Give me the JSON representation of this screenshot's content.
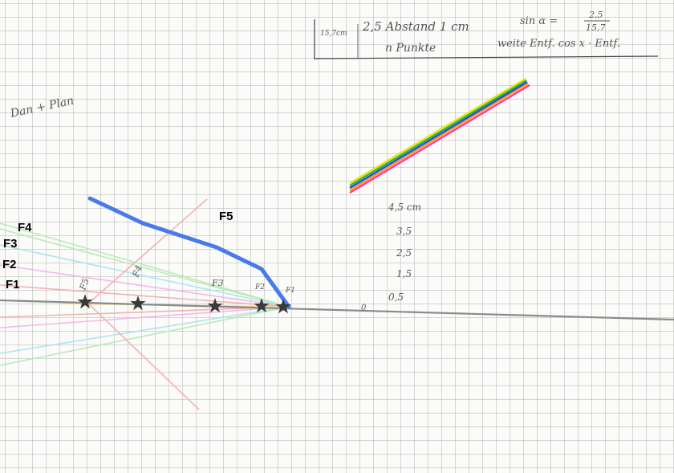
{
  "handwriting": {
    "top_left_note": "15,7cm",
    "spacing_note": "2,5 Abstand 1 cm",
    "count_note": "n Punkte",
    "sin_formula": "sin α =",
    "sin_num": "2,5",
    "sin_den": "15,7",
    "distance_formula": "weite Entf. cos x · Entf.",
    "corner_note": "Dan + Plan",
    "scale_labels": [
      "4,5 cm",
      "3,5",
      "2,5",
      "1,5",
      "0,5"
    ],
    "origin_mark": "0",
    "focus_marks": [
      "F1",
      "F2",
      "F3",
      "F4",
      "F5"
    ]
  },
  "focus_labels": [
    "F1",
    "F2",
    "F3",
    "F4",
    "F5"
  ],
  "colors": {
    "focus_curve": "#4a7ae8",
    "axis": "#8a8a8a",
    "star": "#3a3a3a",
    "ray_pink": "#f4b7e8",
    "ray_cyan": "#a8e6ef",
    "ray_green": "#b9ebb5",
    "ray_red": "#f2b1b1",
    "band": [
      "#ff2fa8",
      "#ff9a00",
      "#1f4fd8",
      "#2fb14a",
      "#e6e600"
    ]
  }
}
